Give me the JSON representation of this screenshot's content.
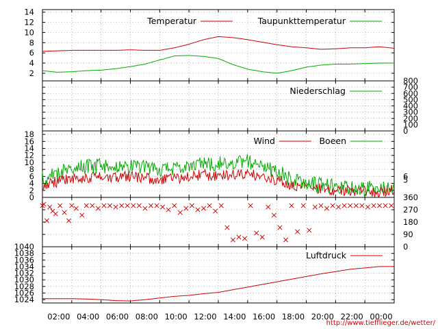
{
  "source_url": "http://www.tiefflieger.de/wetter/",
  "colors": {
    "red": "#cc0000",
    "green": "#00aa00",
    "grid": "#999999"
  },
  "time_axis": {
    "start_hour": 0,
    "end_hour": 24,
    "tick_labels": [
      "02:00",
      "04:00",
      "06:00",
      "08:00",
      "10:00",
      "12:00",
      "14:00",
      "16:00",
      "18:00",
      "20:00",
      "22:00",
      "00:00"
    ],
    "tick_hours": [
      2,
      4,
      6,
      8,
      10,
      12,
      14,
      16,
      18,
      20,
      22,
      24
    ]
  },
  "chart_data": [
    {
      "type": "line",
      "ylim": [
        0.5,
        14.5
      ],
      "y_ticks": [
        2,
        4,
        6,
        8,
        10,
        12,
        14
      ],
      "grid": true,
      "legend_placement": "top-right",
      "x_hours": [
        0,
        1,
        2,
        3,
        4,
        5,
        6,
        7,
        8,
        9,
        10,
        11,
        12,
        13,
        14,
        15,
        16,
        17,
        18,
        19,
        20,
        21,
        22,
        23,
        24
      ],
      "series": [
        {
          "name": "Temperatur",
          "color": "#cc0000",
          "values": [
            6.3,
            6.4,
            6.5,
            6.5,
            6.5,
            6.5,
            6.6,
            6.5,
            6.5,
            7.0,
            7.7,
            8.6,
            9.2,
            9.0,
            8.6,
            8.1,
            7.6,
            7.2,
            7.0,
            6.7,
            6.8,
            7.0,
            7.0,
            7.2,
            6.9
          ]
        },
        {
          "name": "Taupunkttemperatur",
          "color": "#00aa00",
          "values": [
            2.5,
            2.2,
            2.3,
            2.5,
            2.6,
            2.9,
            3.3,
            3.8,
            4.6,
            5.4,
            5.5,
            5.3,
            4.9,
            3.7,
            2.8,
            2.3,
            2.0,
            2.5,
            3.2,
            3.6,
            3.8,
            3.8,
            3.9,
            4.0,
            4.0
          ]
        }
      ]
    },
    {
      "type": "line",
      "ylim": [
        0,
        800
      ],
      "y_ticks": [
        0,
        100,
        200,
        300,
        400,
        500,
        600,
        700,
        800
      ],
      "grid": true,
      "legend_placement": "top-right",
      "x_hours": [
        0,
        24
      ],
      "series": [
        {
          "name": "Niederschlag",
          "color": "#00aa00",
          "values": [
            0,
            0
          ]
        }
      ]
    },
    {
      "type": "line",
      "ylim": [
        0,
        19
      ],
      "y_ticks": [
        0,
        2,
        4,
        6,
        8,
        10,
        12,
        14,
        16,
        18
      ],
      "right_ticks": [
        5,
        6
      ],
      "grid": true,
      "legend_placement": "top-right",
      "x_hours": [
        0,
        1,
        2,
        3,
        4,
        5,
        6,
        7,
        8,
        9,
        10,
        11,
        12,
        13,
        14,
        15,
        16,
        17,
        18,
        19,
        20,
        21,
        22,
        23,
        24
      ],
      "series": [
        {
          "name": "Wind",
          "color": "#cc0000",
          "values": [
            3.5,
            4.5,
            5.2,
            5.8,
            6.0,
            5.5,
            6.1,
            5.5,
            5.0,
            5.5,
            6.0,
            6.5,
            6.0,
            6.5,
            6.5,
            6.0,
            4.8,
            3.5,
            2.8,
            2.5,
            2.0,
            1.8,
            1.8,
            1.5,
            2.5
          ]
        },
        {
          "name": "Boeen",
          "color": "#00aa00",
          "values": [
            5.5,
            7.0,
            8.2,
            8.8,
            9.0,
            8.2,
            9.0,
            8.5,
            7.5,
            8.3,
            9.0,
            9.5,
            9.5,
            10.0,
            10.5,
            9.0,
            7.5,
            5.2,
            4.2,
            3.5,
            3.0,
            2.8,
            2.6,
            2.5,
            3.5
          ]
        }
      ]
    },
    {
      "type": "scatter",
      "ylim": [
        0,
        360
      ],
      "y_ticks": [
        0,
        90,
        180,
        270,
        360
      ],
      "grid": true,
      "x_hours": [
        0,
        0.1,
        0.3,
        0.5,
        0.7,
        0.9,
        1.2,
        1.5,
        1.8,
        2.0,
        2.3,
        2.7,
        3.0,
        3.4,
        3.8,
        4.2,
        4.6,
        5.0,
        5.4,
        5.8,
        6.2,
        6.6,
        7.0,
        7.4,
        7.8,
        8.2,
        8.6,
        9.0,
        9.4,
        9.8,
        10.2,
        10.6,
        11.0,
        11.4,
        11.8,
        12.2,
        12.6,
        13.0,
        13.4,
        13.8,
        14.2,
        14.6,
        15.0,
        15.4,
        15.8,
        16.2,
        16.6,
        17.0,
        17.4,
        17.8,
        18.2,
        18.6,
        19.0,
        19.4,
        19.8,
        20.2,
        20.6,
        21.0,
        21.4,
        21.8,
        22.2,
        22.6,
        23.0,
        23.4,
        23.8
      ],
      "values": [
        300,
        310,
        190,
        290,
        260,
        240,
        300,
        250,
        190,
        300,
        280,
        230,
        300,
        300,
        280,
        300,
        300,
        290,
        300,
        300,
        300,
        300,
        280,
        300,
        300,
        290,
        270,
        300,
        250,
        280,
        300,
        270,
        280,
        300,
        260,
        300,
        140,
        50,
        70,
        60,
        300,
        100,
        70,
        290,
        230,
        140,
        50,
        300,
        110,
        300,
        120,
        290,
        300,
        280,
        300,
        290,
        300,
        300,
        300,
        300,
        290,
        300,
        300,
        300,
        300
      ]
    },
    {
      "type": "line",
      "ylim": [
        1023,
        1040
      ],
      "y_ticks": [
        1024,
        1026,
        1028,
        1030,
        1032,
        1034,
        1036,
        1038,
        1040
      ],
      "grid": true,
      "legend_placement": "top-right",
      "x_hours": [
        0,
        1,
        2,
        3,
        4,
        5,
        6,
        7,
        8,
        9,
        10,
        11,
        12,
        13,
        14,
        15,
        16,
        17,
        18,
        19,
        20,
        21,
        22,
        23,
        24
      ],
      "series": [
        {
          "name": "Luftdruck",
          "color": "#cc0000",
          "values": [
            1024.3,
            1024.3,
            1024.3,
            1024.2,
            1024.0,
            1023.7,
            1023.6,
            1024.0,
            1024.5,
            1025.0,
            1025.3,
            1025.8,
            1026.2,
            1027.0,
            1027.8,
            1028.6,
            1029.4,
            1030.2,
            1031.0,
            1031.8,
            1032.5,
            1033.2,
            1033.6,
            1034.0,
            1034.0
          ]
        }
      ]
    }
  ]
}
